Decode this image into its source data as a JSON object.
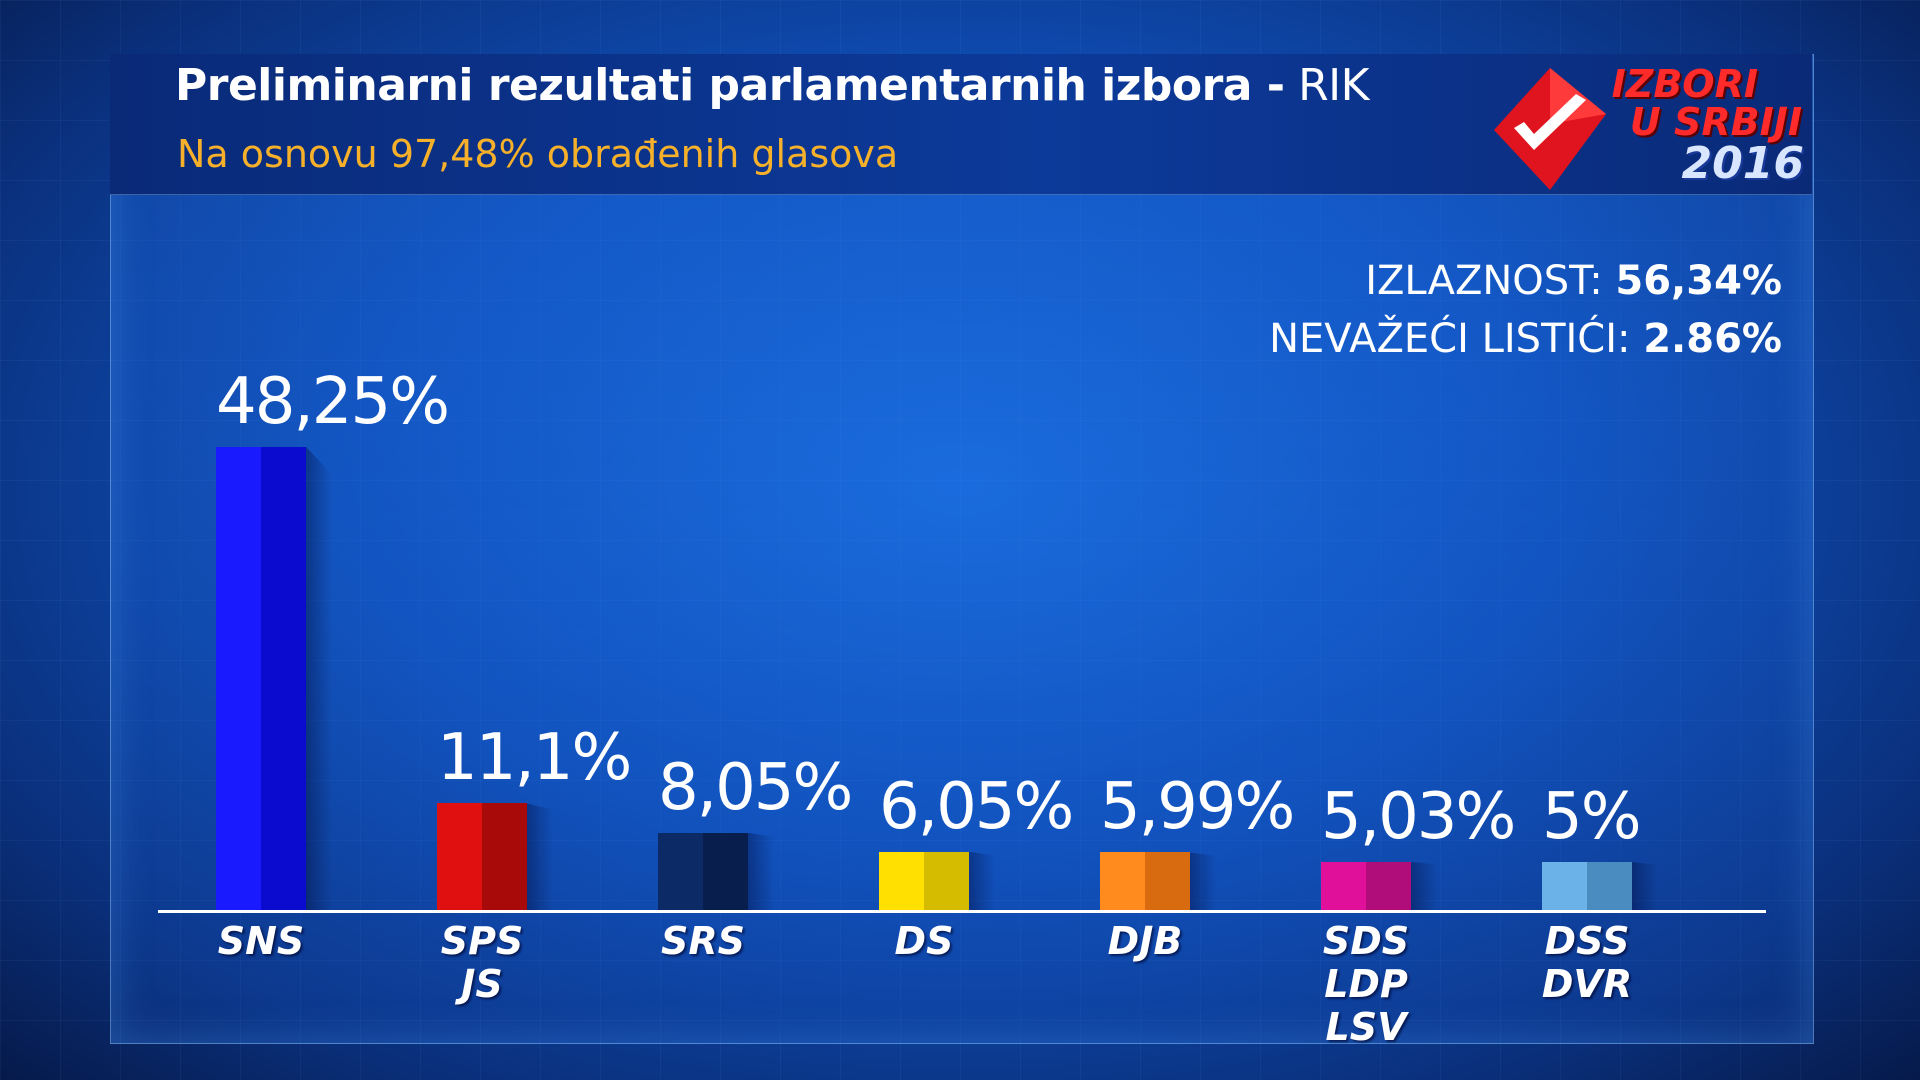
{
  "header": {
    "title_bold": "Preliminarni  rezultati parlamentarnih izbora -",
    "title_source": "RIK",
    "subtitle": "Na osnovu 97,48% obrađenih glasova"
  },
  "logo": {
    "line1": "IZBORI",
    "line2": "U SRBIJI",
    "line3": "2016"
  },
  "stats": {
    "turnout_label": "IZLAZNOST:",
    "turnout_value": "56,34%",
    "invalid_label": "NEVAŽEĆI LISTIĆI:",
    "invalid_value": "2.86%"
  },
  "chart_data": {
    "type": "bar",
    "categories": [
      "SNS",
      "SPS JS",
      "SRS",
      "DS",
      "DJB",
      "SDS LDP LSV",
      "DSS DVR"
    ],
    "values": [
      48.25,
      11.1,
      8.05,
      6.05,
      5.99,
      5.03,
      5
    ],
    "value_labels": [
      "48,25%",
      "11,1%",
      "8,05%",
      "6,05%",
      "5,99%",
      "5,03%",
      "5%"
    ],
    "category_lines": [
      [
        "SNS"
      ],
      [
        "SPS",
        "JS"
      ],
      [
        "SRS"
      ],
      [
        "DS"
      ],
      [
        "DJB"
      ],
      [
        "SDS",
        "LDP",
        "LSV"
      ],
      [
        "DSS",
        "DVR"
      ]
    ],
    "colors": [
      [
        "#1a1aff",
        "#0b0bd0"
      ],
      [
        "#e01010",
        "#a80a0a"
      ],
      [
        "#0c2a66",
        "#081f4e"
      ],
      [
        "#ffe000",
        "#d6bc00"
      ],
      [
        "#ff8a1e",
        "#d86a10"
      ],
      [
        "#e0109a",
        "#b00c7a"
      ],
      [
        "#6ab2e8",
        "#4a8cc0"
      ]
    ],
    "ylim": [
      0,
      50
    ],
    "title": "Preliminarni  rezultati parlamentarnih izbora - RIK",
    "xlabel": "",
    "ylabel": ""
  }
}
